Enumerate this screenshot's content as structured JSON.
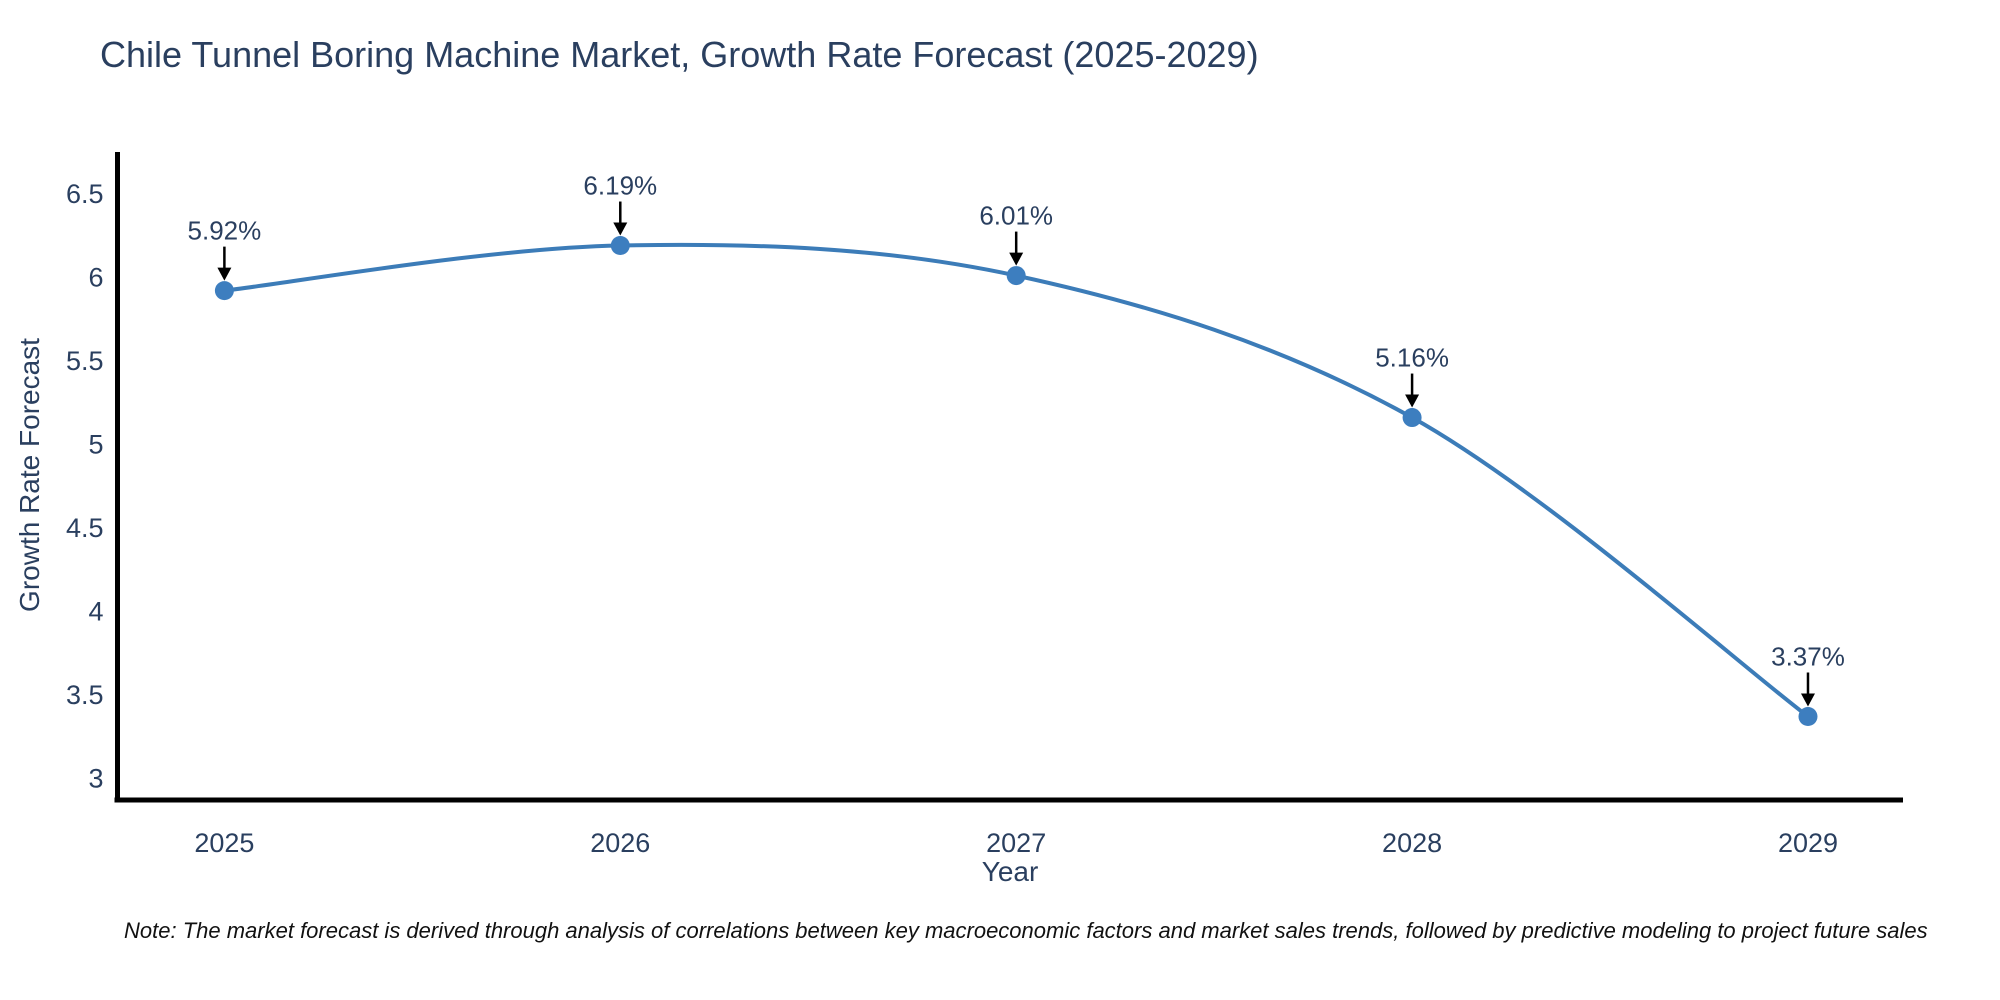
{
  "page": {
    "background_color": "#ffffff"
  },
  "note": "Note: The market forecast is derived through analysis of correlations between key macroeconomic factors and market sales trends, followed by predictive modeling to project future sales",
  "chart_data": {
    "type": "line",
    "title": "Chile Tunnel Boring Machine Market, Growth Rate Forecast (2025-2029)",
    "xlabel": "Year",
    "ylabel": "Growth Rate Forecast",
    "x": [
      2025,
      2026,
      2027,
      2028,
      2029
    ],
    "series": [
      {
        "name": "Growth Rate Forecast",
        "values": [
          5.92,
          6.19,
          6.01,
          5.16,
          3.37
        ]
      }
    ],
    "point_labels": [
      "5.92%",
      "6.19%",
      "6.01%",
      "5.16%",
      "3.37%"
    ],
    "xticks": [
      2025,
      2026,
      2027,
      2028,
      2029
    ],
    "xtick_labels": [
      "2025",
      "2026",
      "2027",
      "2028",
      "2029"
    ],
    "yticks": [
      3,
      3.5,
      4,
      4.5,
      5,
      5.5,
      6,
      6.5
    ],
    "ytick_labels": [
      "3",
      "3.5",
      "4",
      "4.5",
      "5",
      "5.5",
      "6",
      "6.5"
    ],
    "xlim": [
      2024.73,
      2029.24
    ],
    "ylim": [
      2.87,
      6.75
    ],
    "grid": false,
    "legend_position": "none",
    "curve": "spline",
    "colors": {
      "line": "#3c7cb8",
      "marker": "#3d7ebf",
      "axis_line": "#000000",
      "tick_text": "#2a3f5f",
      "annotation_text": "#2a3f5f",
      "annotation_arrow": "#000000"
    }
  }
}
